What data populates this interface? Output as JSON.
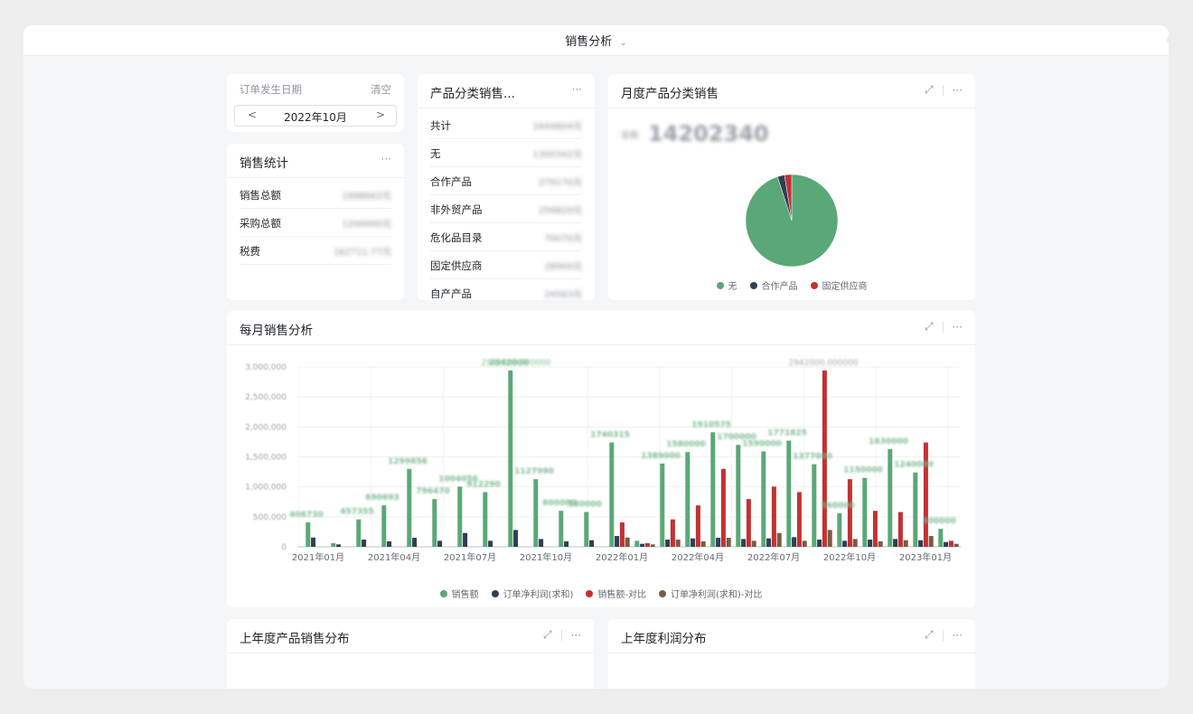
{
  "header": {
    "title": "销售分析",
    "caret": "⌄"
  },
  "colors": {
    "green": "#5aa877",
    "navy": "#2e3f56",
    "red": "#c33232",
    "brown": "#7a5a43"
  },
  "date_filter": {
    "label": "订单发生日期",
    "clear": "清空",
    "value": "2022年10月",
    "prev": "<",
    "next": ">"
  },
  "sales_stats": {
    "title": "销售统计",
    "more": "···",
    "rows": [
      {
        "label": "销售总额",
        "value": "1698662元"
      },
      {
        "label": "采购总额",
        "value": "1200000元"
      },
      {
        "label": "税费",
        "value": "162711.77元"
      }
    ]
  },
  "category_sales": {
    "title": "产品分类销售...",
    "more": "···",
    "rows": [
      {
        "label": "共计",
        "value": "2644804元"
      },
      {
        "label": "无",
        "value": "1300342元"
      },
      {
        "label": "合作产品",
        "value": "279170元"
      },
      {
        "label": "非外贸产品",
        "value": "256820元"
      },
      {
        "label": "危化品目录",
        "value": "70070元"
      },
      {
        "label": "固定供应商",
        "value": "28900元"
      },
      {
        "label": "自产产品",
        "value": "24583元"
      }
    ]
  },
  "monthly_category": {
    "title": "月度产品分类销售",
    "total_label": "总和",
    "total_value": "14202340",
    "chart_data": {
      "type": "pie",
      "labels": [
        "无",
        "合作产品",
        "固定供应商"
      ],
      "values": [
        95,
        2.5,
        2.5
      ],
      "colors": [
        "#5aa877",
        "#2e3f56",
        "#c33232"
      ]
    }
  },
  "monthly_sales": {
    "title": "每月销售分析",
    "legend": [
      "销售额",
      "订单净利润(求和)",
      "销售额-对比",
      "订单净利润(求和)-对比"
    ],
    "chart_data": {
      "type": "bar",
      "ylim": [
        0,
        3000000
      ],
      "yticks": [
        "0",
        "500,000",
        "1,000,000",
        "1,500,000",
        "2,000,000",
        "2,500,000",
        "3,000,000"
      ],
      "x_tick_labels": [
        "2021年01月",
        "2021年04月",
        "2021年07月",
        "2021年10月",
        "2022年01月",
        "2022年04月",
        "2022年07月",
        "2022年10月",
        "2023年01月"
      ],
      "categories": [
        "2021-01",
        "2021-02",
        "2021-03",
        "2021-04",
        "2021-05",
        "2021-06",
        "2021-07",
        "2021-08",
        "2021-09",
        "2021-10",
        "2021-11",
        "2021-12",
        "2022-01",
        "2022-02",
        "2022-03",
        "2022-04",
        "2022-05",
        "2022-06",
        "2022-07",
        "2022-08",
        "2022-09",
        "2022-10",
        "2022-11",
        "2022-12",
        "2023-01",
        "2023-02"
      ],
      "series": [
        {
          "name": "销售额",
          "values": [
            406730,
            60000,
            457355,
            690693,
            1299856,
            796470,
            1004056,
            912290,
            2942000,
            1127990,
            600000,
            580000,
            1740315,
            100000,
            1389000,
            1580000,
            1910575,
            1700000,
            1590000,
            1771825,
            1377000,
            560000,
            1150000,
            1630000,
            1240000,
            300000
          ]
        },
        {
          "name": "订单净利润(求和)",
          "values": [
            154500,
            40000,
            120000,
            90000,
            150000,
            100000,
            230000,
            100000,
            280000,
            130000,
            90000,
            110000,
            180000,
            50000,
            120000,
            140000,
            150000,
            130000,
            140000,
            160000,
            120000,
            100000,
            120000,
            130000,
            110000,
            80000
          ]
        },
        {
          "name": "销售额-对比",
          "values": [
            0,
            0,
            0,
            0,
            0,
            0,
            0,
            0,
            0,
            0,
            0,
            0,
            406730,
            60000,
            457355,
            690693,
            1299856,
            796470,
            1004056,
            912290,
            2942000,
            1127990,
            600000,
            580000,
            1740315,
            100000
          ]
        },
        {
          "name": "订单净利润(求和)-对比",
          "values": [
            0,
            0,
            0,
            0,
            0,
            0,
            0,
            0,
            0,
            0,
            0,
            0,
            154500,
            40000,
            120000,
            90000,
            150000,
            100000,
            230000,
            100000,
            280000,
            130000,
            90000,
            110000,
            180000,
            50000
          ]
        }
      ],
      "labels_shown": [
        "406730",
        "457355",
        "690693",
        "1299856",
        "796470",
        "1004056",
        "912290",
        "2942000",
        "1127990",
        "1740315",
        "1389000",
        "1580000",
        "1910575",
        "1771825",
        "1630000"
      ],
      "top_annotation": "2942000.000000"
    }
  },
  "prev_year_sales": {
    "title": "上年度产品销售分布"
  },
  "prev_year_profit": {
    "title": "上年度利润分布"
  },
  "icons": {
    "expand": "⤢",
    "more": "···",
    "corner": "⌕"
  }
}
